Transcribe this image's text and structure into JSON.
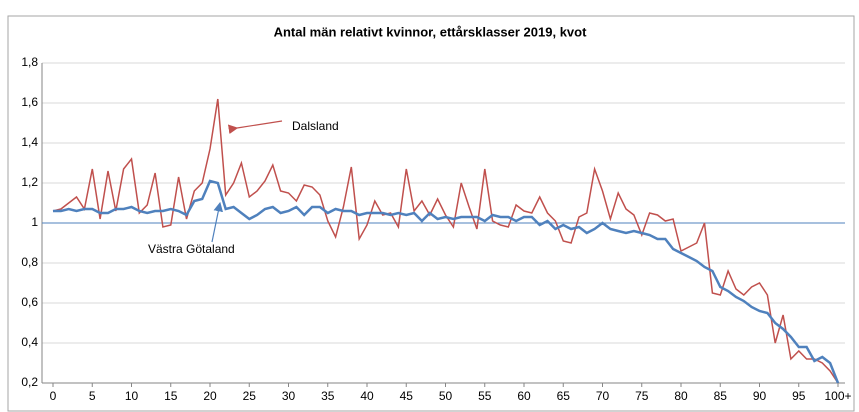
{
  "chart_data": {
    "type": "line",
    "title": "Antal män relativt kvinnor, ettårsklasser 2019, kvot",
    "x": [
      0,
      1,
      2,
      3,
      4,
      5,
      6,
      7,
      8,
      9,
      10,
      11,
      12,
      13,
      14,
      15,
      16,
      17,
      18,
      19,
      20,
      21,
      22,
      23,
      24,
      25,
      26,
      27,
      28,
      29,
      30,
      31,
      32,
      33,
      34,
      35,
      36,
      37,
      38,
      39,
      40,
      41,
      42,
      43,
      44,
      45,
      46,
      47,
      48,
      49,
      50,
      51,
      52,
      53,
      54,
      55,
      56,
      57,
      58,
      59,
      60,
      61,
      62,
      63,
      64,
      65,
      66,
      67,
      68,
      69,
      70,
      71,
      72,
      73,
      74,
      75,
      76,
      77,
      78,
      79,
      80,
      81,
      82,
      83,
      84,
      85,
      86,
      87,
      88,
      89,
      90,
      91,
      92,
      93,
      94,
      95,
      96,
      97,
      98,
      99,
      100
    ],
    "series": [
      {
        "name": "Dalsland",
        "color": "#c0504d",
        "values": [
          1.06,
          1.07,
          1.1,
          1.13,
          1.07,
          1.27,
          1.02,
          1.26,
          1.06,
          1.27,
          1.32,
          1.05,
          1.09,
          1.25,
          0.98,
          0.99,
          1.23,
          1.02,
          1.16,
          1.2,
          1.37,
          1.62,
          1.14,
          1.2,
          1.3,
          1.13,
          1.16,
          1.21,
          1.29,
          1.16,
          1.15,
          1.11,
          1.19,
          1.18,
          1.14,
          1.01,
          0.93,
          1.08,
          1.28,
          0.92,
          0.99,
          1.11,
          1.04,
          1.05,
          0.98,
          1.27,
          1.06,
          1.11,
          1.04,
          1.12,
          1.04,
          0.98,
          1.2,
          1.08,
          0.97,
          1.27,
          1.01,
          0.99,
          0.98,
          1.09,
          1.06,
          1.05,
          1.13,
          1.05,
          1.01,
          0.91,
          0.9,
          1.03,
          1.05,
          1.27,
          1.16,
          1.02,
          1.15,
          1.07,
          1.04,
          0.94,
          1.05,
          1.04,
          1.01,
          1.02,
          0.86,
          0.88,
          0.9,
          1.0,
          0.65,
          0.64,
          0.76,
          0.67,
          0.64,
          0.68,
          0.7,
          0.64,
          0.4,
          0.54,
          0.32,
          0.36,
          0.32,
          0.32,
          0.3,
          0.26,
          0.2
        ]
      },
      {
        "name": "Västra Götaland",
        "color": "#4f81bd",
        "values": [
          1.06,
          1.06,
          1.07,
          1.06,
          1.07,
          1.07,
          1.05,
          1.05,
          1.07,
          1.07,
          1.08,
          1.06,
          1.05,
          1.06,
          1.06,
          1.07,
          1.06,
          1.04,
          1.11,
          1.12,
          1.21,
          1.2,
          1.07,
          1.08,
          1.05,
          1.02,
          1.04,
          1.07,
          1.08,
          1.05,
          1.06,
          1.08,
          1.04,
          1.08,
          1.08,
          1.05,
          1.07,
          1.06,
          1.06,
          1.04,
          1.05,
          1.05,
          1.05,
          1.04,
          1.05,
          1.04,
          1.05,
          1.01,
          1.05,
          1.02,
          1.03,
          1.02,
          1.03,
          1.03,
          1.03,
          1.01,
          1.04,
          1.03,
          1.03,
          1.01,
          1.03,
          1.03,
          0.99,
          1.01,
          0.97,
          0.99,
          0.97,
          0.98,
          0.95,
          0.97,
          1.0,
          0.97,
          0.96,
          0.95,
          0.96,
          0.95,
          0.94,
          0.92,
          0.92,
          0.87,
          0.85,
          0.83,
          0.81,
          0.78,
          0.76,
          0.68,
          0.66,
          0.63,
          0.61,
          0.58,
          0.56,
          0.55,
          0.5,
          0.47,
          0.43,
          0.38,
          0.38,
          0.31,
          0.33,
          0.3,
          0.2
        ]
      }
    ],
    "reference_line": 1,
    "xlim": [
      0,
      100
    ],
    "xticks": [
      0,
      5,
      10,
      15,
      20,
      25,
      30,
      35,
      40,
      45,
      50,
      55,
      60,
      65,
      70,
      75,
      80,
      85,
      90,
      95,
      {
        "value": 100,
        "label": "100+"
      }
    ],
    "ylim": [
      0.2,
      1.8
    ],
    "yticks": [
      {
        "value": 0.2,
        "label": "0,2"
      },
      {
        "value": 0.4,
        "label": "0,4"
      },
      {
        "value": 0.6,
        "label": "0,6"
      },
      {
        "value": 0.8,
        "label": "0,8"
      },
      1,
      {
        "value": 1.2,
        "label": "1,2"
      },
      {
        "value": 1.4,
        "label": "1,4"
      },
      {
        "value": 1.6,
        "label": "1,6"
      },
      {
        "value": 1.8,
        "label": "1,8"
      }
    ],
    "grid": true,
    "annotations": [
      "Dalsland",
      "Västra Götaland"
    ]
  }
}
